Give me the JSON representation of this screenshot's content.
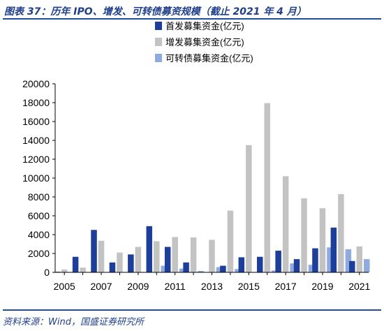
{
  "header": {
    "title": "图表 37：历年 IPO、增发、可转债募资规模（截止 2021 年 4 月）"
  },
  "footer": {
    "source": "资料来源：Wind，国盛证券研究所"
  },
  "colors": {
    "accent": "#1f4e9c",
    "ipo": "#1d3f99",
    "sec": "#c3c3c3",
    "cb": "#8eaadf"
  },
  "chart_data": {
    "type": "bar",
    "categories": [
      "2005",
      "2006",
      "2007",
      "2008",
      "2009",
      "2010",
      "2011",
      "2012",
      "2013",
      "2014",
      "2015",
      "2016",
      "2017",
      "2018",
      "2019",
      "2020",
      "2021"
    ],
    "x_tick_labels": [
      "2005",
      "2007",
      "2009",
      "2011",
      "2013",
      "2015",
      "2017",
      "2019",
      "2021"
    ],
    "y_ticks": [
      0,
      2000,
      4000,
      6000,
      8000,
      10000,
      12000,
      14000,
      16000,
      18000,
      20000
    ],
    "ylim": [
      0,
      20000
    ],
    "series": [
      {
        "name": "首发募集资金(亿元)",
        "color": "#1d3f99",
        "values": [
          60,
          1650,
          4500,
          1050,
          1900,
          4900,
          2700,
          1050,
          0,
          700,
          1600,
          1650,
          2300,
          1400,
          2550,
          4750,
          1200
        ]
      },
      {
        "name": "增发募集资金(亿元)",
        "color": "#c3c3c3",
        "values": [
          300,
          500,
          3350,
          2100,
          2700,
          3300,
          3750,
          3700,
          3450,
          6550,
          13500,
          17950,
          10200,
          7850,
          6800,
          8300,
          2750
        ]
      },
      {
        "name": "可转债募集资金(亿元)",
        "color": "#8eaadf",
        "values": [
          0,
          0,
          0,
          0,
          0,
          700,
          400,
          150,
          550,
          350,
          0,
          200,
          950,
          800,
          2650,
          2450,
          1400
        ]
      }
    ],
    "legend_position": "top-center",
    "grid": false
  }
}
